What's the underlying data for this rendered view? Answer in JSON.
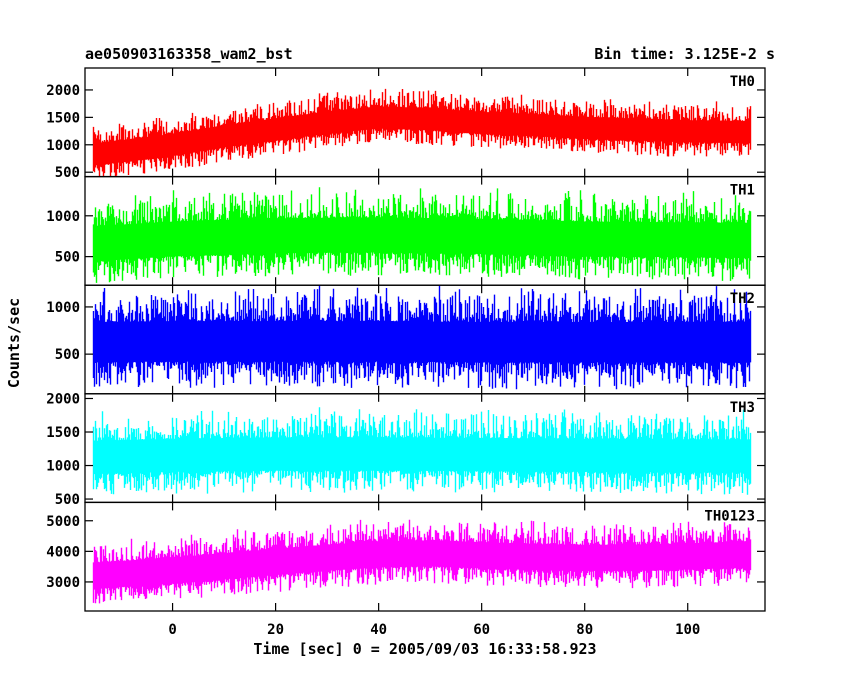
{
  "chart_data": {
    "type": "line",
    "title": "ae050903163358_wam2_bst",
    "bin_time_label": "Bin time: 3.125E-2 s",
    "xlabel": "Time [sec] 0 = 2005/09/03 16:33:58.923",
    "ylabel": "Counts/sec",
    "xlim": [
      -17,
      115
    ],
    "x_ticks": [
      0,
      20,
      40,
      60,
      80,
      100
    ],
    "x_range": [
      -15.5,
      112
    ],
    "bin": 0.03125,
    "panels": [
      {
        "name": "TH0",
        "color": "#ff0000",
        "ylim": [
          420,
          2400
        ],
        "y_ticks": [
          500,
          1000,
          1500,
          2000
        ],
        "trend_x": [
          -15,
          0,
          10,
          20,
          30,
          40,
          50,
          60,
          70,
          80,
          90,
          100,
          112
        ],
        "trend_y": [
          850,
          1020,
          1180,
          1300,
          1430,
          1520,
          1490,
          1420,
          1380,
          1330,
          1300,
          1270,
          1250
        ],
        "spread": 900
      },
      {
        "name": "TH1",
        "color": "#00ff00",
        "ylim": [
          150,
          1480
        ],
        "y_ticks": [
          500,
          1000
        ],
        "trend_x": [
          -15,
          0,
          20,
          40,
          60,
          80,
          100,
          112
        ],
        "trend_y": [
          680,
          740,
          780,
          790,
          770,
          740,
          730,
          720
        ],
        "spread": 950
      },
      {
        "name": "TH2",
        "color": "#0000ff",
        "ylim": [
          80,
          1230
        ],
        "y_ticks": [
          500,
          1000
        ],
        "trend_x": [
          -15,
          0,
          20,
          40,
          60,
          80,
          100,
          112
        ],
        "trend_y": [
          650,
          660,
          660,
          660,
          650,
          650,
          650,
          650
        ],
        "spread": 950
      },
      {
        "name": "TH3",
        "color": "#00ffff",
        "ylim": [
          450,
          2070
        ],
        "y_ticks": [
          500,
          1000,
          1500,
          2000
        ],
        "trend_x": [
          -15,
          0,
          20,
          40,
          60,
          80,
          100,
          112
        ],
        "trend_y": [
          1150,
          1180,
          1200,
          1200,
          1190,
          1180,
          1170,
          1170
        ],
        "spread": 1100
      },
      {
        "name": "TH0123",
        "color": "#ff00ff",
        "ylim": [
          2050,
          5600
        ],
        "y_ticks": [
          3000,
          4000,
          5000
        ],
        "trend_x": [
          -15,
          0,
          10,
          20,
          30,
          40,
          50,
          60,
          70,
          80,
          90,
          100,
          112
        ],
        "trend_y": [
          3250,
          3420,
          3560,
          3700,
          3840,
          3950,
          3980,
          3920,
          3860,
          3830,
          3840,
          3880,
          3950
        ],
        "spread": 1900
      }
    ]
  }
}
